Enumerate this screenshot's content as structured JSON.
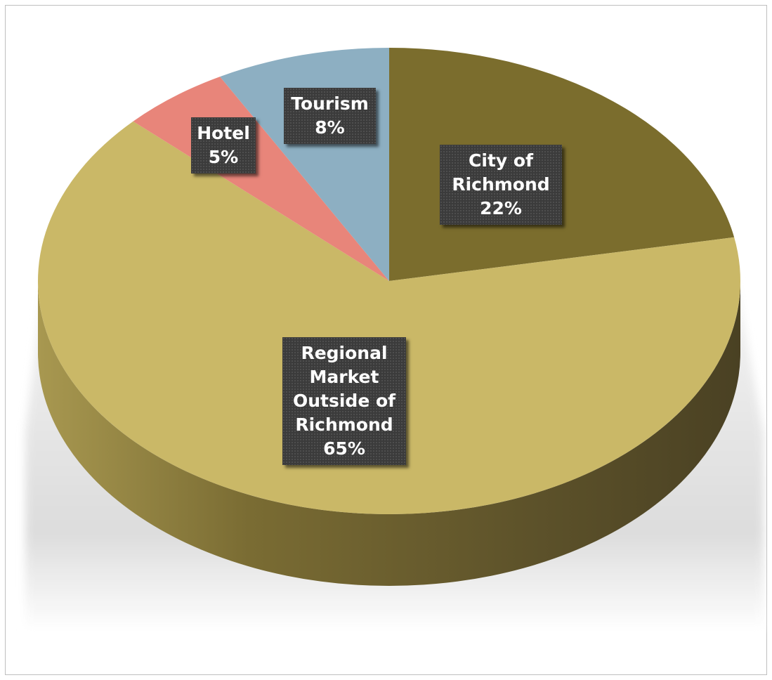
{
  "chart_data": {
    "type": "pie",
    "title": "",
    "slices": [
      {
        "label": "City of Richmond",
        "value": 22,
        "display": [
          "City of",
          "Richmond",
          "22%"
        ],
        "color": "#7b6d2d"
      },
      {
        "label": "Regional Market Outside of Richmond",
        "value": 65,
        "display": [
          "Regional",
          "Market",
          "Outside of",
          "Richmond",
          "65%"
        ],
        "color": "#cab867"
      },
      {
        "label": "Hotel",
        "value": 5,
        "display": [
          "Hotel",
          "5%"
        ],
        "color": "#e8857a"
      },
      {
        "label": "Tourism",
        "value": 8,
        "display": [
          "Tourism",
          "8%"
        ],
        "color": "#8dafc2"
      }
    ],
    "start_angle_deg": 0,
    "direction": "clockwise",
    "style": "3d-tilted",
    "legend": "none",
    "data_labels": "inside, dark box"
  }
}
